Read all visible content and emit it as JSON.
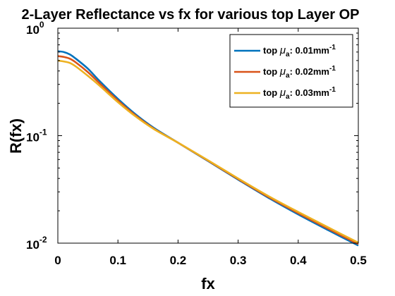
{
  "chart_data": {
    "type": "line",
    "title": "2-Layer Reflectance vs fx for various top Layer OP",
    "xlabel": "fx",
    "ylabel": "R(fx)",
    "xlim": [
      0,
      0.5
    ],
    "ylim": [
      0.01,
      1
    ],
    "yscale": "log",
    "xticks": [
      {
        "value": 0,
        "label": "0"
      },
      {
        "value": 0.1,
        "label": "0.1"
      },
      {
        "value": 0.2,
        "label": "0.2"
      },
      {
        "value": 0.3,
        "label": "0.3"
      },
      {
        "value": 0.4,
        "label": "0.4"
      },
      {
        "value": 0.5,
        "label": "0.5"
      }
    ],
    "yticks": [
      {
        "value": 1,
        "base": "10",
        "exp": "0"
      },
      {
        "value": 0.1,
        "base": "10",
        "exp": "-1"
      },
      {
        "value": 0.01,
        "base": "10",
        "exp": "-2"
      }
    ],
    "grid": false,
    "legend_position": "top-right",
    "x": [
      0,
      0.01,
      0.02,
      0.03,
      0.05,
      0.07,
      0.1,
      0.13,
      0.16,
      0.2,
      0.25,
      0.3,
      0.35,
      0.4,
      0.45,
      0.5
    ],
    "series": [
      {
        "legend_prefix": "top ",
        "legend_mu": "μ",
        "legend_sub": "a",
        "legend_value": ": 0.01mm",
        "legend_sup": "-1",
        "color": "#0072BD",
        "values": [
          0.61,
          0.6,
          0.57,
          0.52,
          0.42,
          0.32,
          0.22,
          0.157,
          0.118,
          0.086,
          0.058,
          0.039,
          0.0265,
          0.0185,
          0.0132,
          0.0095
        ]
      },
      {
        "legend_prefix": "top ",
        "legend_mu": "μ",
        "legend_sub": "a",
        "legend_value": ": 0.02mm",
        "legend_sup": "-1",
        "color": "#D95319",
        "values": [
          0.55,
          0.54,
          0.52,
          0.48,
          0.39,
          0.305,
          0.212,
          0.153,
          0.116,
          0.086,
          0.0585,
          0.0395,
          0.027,
          0.019,
          0.0136,
          0.0098
        ]
      },
      {
        "legend_prefix": "top ",
        "legend_mu": "μ",
        "legend_sub": "a",
        "legend_value": ": 0.03mm",
        "legend_sup": "-1",
        "color": "#EDB120",
        "values": [
          0.5,
          0.49,
          0.475,
          0.44,
          0.36,
          0.29,
          0.205,
          0.15,
          0.115,
          0.086,
          0.059,
          0.04,
          0.0275,
          0.0195,
          0.014,
          0.0101
        ]
      }
    ]
  }
}
